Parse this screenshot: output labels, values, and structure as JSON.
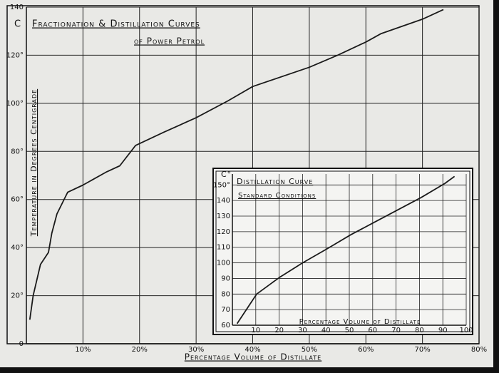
{
  "chart_data": [
    {
      "type": "line",
      "title": "Fractionation & Distillation Curves",
      "subtitle": "of Power Petrol",
      "unit_label": "C",
      "y_label": "Temperature in Degrees Centigrade",
      "x_label": "Percentage Volume of Distillate",
      "x": [
        0.6,
        1.2,
        2.5,
        3.9,
        4.5,
        5.4,
        7.3,
        10,
        14.2,
        16.5,
        19.3,
        24.3,
        30,
        35.6,
        40,
        50,
        55,
        60,
        62.7,
        70,
        73.7
      ],
      "values": [
        10,
        20,
        33,
        38,
        46,
        54,
        63,
        66,
        71.5,
        74,
        82.5,
        88,
        94,
        101,
        107,
        115,
        120,
        125.5,
        129,
        135,
        139
      ],
      "color": "#1a1a1a",
      "xlim": [
        0,
        80
      ],
      "ylim": [
        0,
        140
      ],
      "xticks": [
        {
          "value": 10,
          "label": "10%"
        },
        {
          "value": 20,
          "label": "20%"
        },
        {
          "value": 30,
          "label": "30%"
        },
        {
          "value": 40,
          "label": "40%"
        },
        {
          "value": 50,
          "label": "50%"
        },
        {
          "value": 60,
          "label": "60%"
        },
        {
          "value": 70,
          "label": "70%"
        },
        {
          "value": 80,
          "label": "80%"
        }
      ],
      "yticks": [
        0,
        {
          "value": 20,
          "label": "20°"
        },
        {
          "value": 40,
          "label": "40°"
        },
        {
          "value": 60,
          "label": "60°"
        },
        {
          "value": 80,
          "label": "80°"
        },
        {
          "value": 100,
          "label": "100°"
        },
        {
          "value": 120,
          "label": "120°"
        },
        140
      ],
      "grid": true
    },
    {
      "type": "line",
      "title": "Distillation Curve",
      "subtitle": "Standard Conditions",
      "unit_label": "C°",
      "x_label": "Percentage Volume of Distillate",
      "x": [
        2,
        10.4,
        20,
        30,
        40.5,
        50.6,
        60.6,
        70.7,
        80.8,
        90.9,
        95
      ],
      "values": [
        61,
        80,
        90.5,
        100,
        109,
        118,
        126,
        134,
        142,
        151,
        155.5
      ],
      "color": "#1a1a1a",
      "xlim": [
        0,
        100
      ],
      "ylim": [
        60,
        157
      ],
      "xticks": [
        10,
        20,
        30,
        40,
        50,
        60,
        70,
        80,
        90,
        100
      ],
      "yticks": [
        60,
        70,
        80,
        90,
        100,
        110,
        120,
        130,
        140,
        {
          "value": 150,
          "label": "150°"
        }
      ],
      "grid": true
    }
  ]
}
